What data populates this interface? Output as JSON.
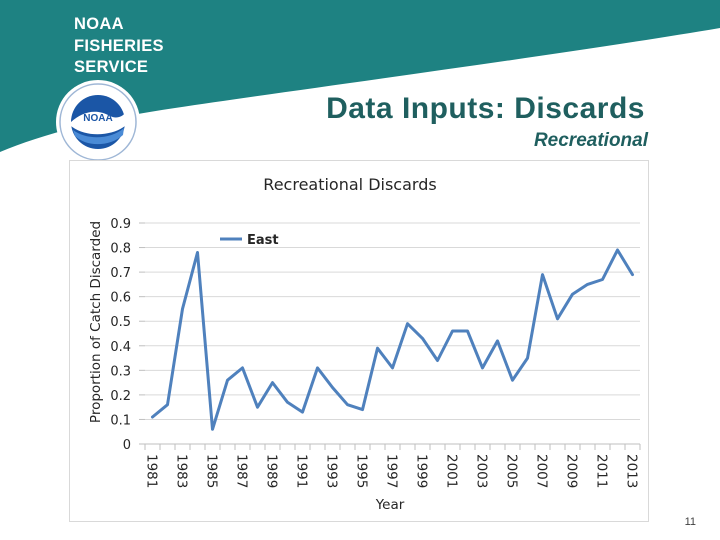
{
  "brand": {
    "line1": "NOAA",
    "line2": "FISHERIES",
    "line3": "SERVICE",
    "logo_text": "NOAA",
    "colors": {
      "teal": "#1e8282",
      "teal_dark": "#1f5f5f",
      "logo_blue": "#1b56a6"
    }
  },
  "slide": {
    "title": "Data Inputs: Discards",
    "subtitle": "Recreational",
    "page_number": "11"
  },
  "chart_data": {
    "type": "line",
    "title": "Recreational Discards",
    "xlabel": "Year",
    "ylabel": "Proportion of Catch Discarded",
    "ylim": [
      0,
      0.9
    ],
    "yticks": [
      "0",
      "0.1",
      "0.2",
      "0.3",
      "0.4",
      "0.5",
      "0.6",
      "0.7",
      "0.8",
      "0.9"
    ],
    "x": [
      1981,
      1982,
      1983,
      1984,
      1985,
      1986,
      1987,
      1988,
      1989,
      1990,
      1991,
      1992,
      1993,
      1994,
      1995,
      1996,
      1997,
      1998,
      1999,
      2000,
      2001,
      2002,
      2003,
      2004,
      2005,
      2006,
      2007,
      2008,
      2009,
      2010,
      2011,
      2012,
      2013
    ],
    "xtick_labels": [
      "1981",
      "1983",
      "1985",
      "1987",
      "1989",
      "1991",
      "1993",
      "1995",
      "1997",
      "1999",
      "2001",
      "2003",
      "2005",
      "2007",
      "2009",
      "2011",
      "2013"
    ],
    "series": [
      {
        "name": "East",
        "color": "#4f81bd",
        "values": [
          0.11,
          0.16,
          0.55,
          0.78,
          0.06,
          0.26,
          0.31,
          0.15,
          0.25,
          0.17,
          0.13,
          0.31,
          0.23,
          0.16,
          0.14,
          0.39,
          0.31,
          0.49,
          0.43,
          0.34,
          0.46,
          0.46,
          0.31,
          0.42,
          0.26,
          0.35,
          0.69,
          0.51,
          0.61,
          0.65,
          0.67,
          0.79,
          0.69
        ]
      }
    ],
    "legend_position": "top-left",
    "grid": true
  }
}
